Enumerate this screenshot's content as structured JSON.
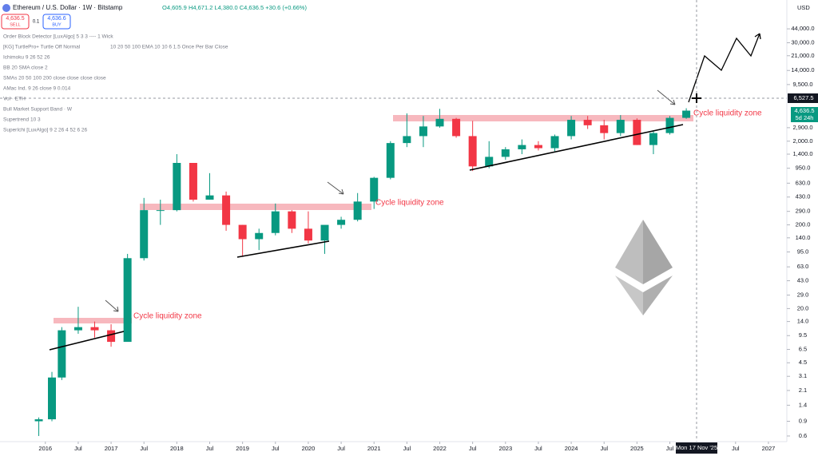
{
  "header": {
    "symbol": "Ethereum / U.S. Dollar · 1W · Bitstamp",
    "ohlc": "O4,605.9 H4,671.2 L4,380.0 C4,636.5 +30.6 (+0.66%)"
  },
  "trade": {
    "sell_price": "4,636.5",
    "sell": "SELL",
    "spread": "0.1",
    "buy_price": "4,636.6",
    "buy": "BUY"
  },
  "indicators": [
    "Order Block Detector [LuxAlgo] 5 3 3 ---- 1 Wick",
    "[KG] TurtlePro+ Turtle Off Normal",
    "Ichimoku 9 26 52 26",
    "BB 20 SMA close 2",
    "SMAs 20 50 100 200 close close close close",
    "AMac Ind. 9 26 close 9 0.014",
    "Vol · ETH",
    "Bull Market Support Band · W",
    "Supertrend 10 3",
    "SuperIchi [LuxAlgo] 9 2 26 4 52 6 26"
  ],
  "indicator_extra": "10 20 50 100 EMA 10 10 6 1.5 Once Per Bar Close",
  "price_scale": {
    "currency": "USD",
    "crosshair_price": "6,527.5",
    "last_price": "4,636.5",
    "countdown": "5d 24h"
  },
  "crosshair_date": "Mon 17 Nov '25",
  "chart_data": {
    "type": "candlestick",
    "log_scale": true,
    "up_color": "#089981",
    "down_color": "#f23645",
    "annotations": [
      "Cycle liquidity zone",
      "Cycle liquidity zone",
      "Cycle liquidity zone"
    ],
    "x": [
      2015.9,
      2016.1,
      2016.25,
      2016.5,
      2016.75,
      2017.0,
      2017.25,
      2017.5,
      2017.75,
      2018.0,
      2018.25,
      2018.5,
      2018.75,
      2019.0,
      2019.25,
      2019.5,
      2019.75,
      2020.0,
      2020.25,
      2020.5,
      2020.75,
      2021.0,
      2021.25,
      2021.5,
      2021.75,
      2022.0,
      2022.25,
      2022.5,
      2022.75,
      2023.0,
      2023.25,
      2023.5,
      2023.75,
      2024.0,
      2024.25,
      2024.5,
      2024.75,
      2025.0,
      2025.25,
      2025.5,
      2025.75
    ],
    "open": [
      0.9,
      0.95,
      3,
      11,
      12,
      11,
      8,
      80,
      300,
      300,
      1100,
      400,
      450,
      200,
      135,
      160,
      290,
      180,
      130,
      200,
      230,
      380,
      730,
      1900,
      2300,
      3000,
      3700,
      2300,
      1000,
      1300,
      1600,
      1800,
      1650,
      2300,
      3600,
      3100,
      2500,
      3600,
      1800,
      2500,
      3800
    ],
    "high": [
      1.0,
      3.5,
      12,
      21,
      14,
      13,
      90,
      420,
      400,
      1400,
      1100,
      830,
      500,
      200,
      180,
      360,
      300,
      290,
      150,
      250,
      480,
      750,
      2000,
      4300,
      4000,
      4870,
      3800,
      3500,
      2000,
      1700,
      2100,
      2000,
      2400,
      4000,
      4000,
      3600,
      4100,
      3750,
      2700,
      4000,
      4950
    ],
    "low": [
      0.6,
      0.9,
      2.8,
      10,
      9,
      7,
      15,
      75,
      200,
      290,
      380,
      400,
      170,
      83,
      100,
      150,
      160,
      120,
      90,
      180,
      220,
      310,
      700,
      1700,
      1700,
      2900,
      2200,
      880,
      950,
      1200,
      1400,
      1550,
      1520,
      2100,
      2800,
      2100,
      2300,
      1800,
      1400,
      2400,
      3700
    ],
    "close": [
      0.95,
      3.0,
      11,
      12,
      11,
      8,
      80,
      300,
      300,
      1100,
      400,
      450,
      200,
      135,
      160,
      290,
      180,
      130,
      200,
      230,
      380,
      730,
      1900,
      2300,
      3000,
      3700,
      2300,
      1000,
      1300,
      1600,
      1800,
      1650,
      2300,
      3600,
      3100,
      2500,
      3600,
      1800,
      2500,
      3800,
      4636.5
    ],
    "xlim": [
      2015.31,
      2027.28
    ],
    "ylim": [
      0.514,
      97300
    ],
    "xticks": [
      2016,
      {
        "value": 2016.5,
        "label": "Jul"
      },
      2017,
      {
        "value": 2017.5,
        "label": "Jul"
      },
      2018,
      {
        "value": 2018.5,
        "label": "Jul"
      },
      2019,
      {
        "value": 2019.5,
        "label": "Jul"
      },
      2020,
      {
        "value": 2020.5,
        "label": "Jul"
      },
      2021,
      {
        "value": 2021.5,
        "label": "Jul"
      },
      2022,
      {
        "value": 2022.5,
        "label": "Jul"
      },
      2023,
      {
        "value": 2023.5,
        "label": "Jul"
      },
      2024,
      {
        "value": 2024.5,
        "label": "Jul"
      },
      2025,
      {
        "value": 2025.5,
        "label": "Jul"
      },
      {
        "value": 2026.5,
        "label": "Jul"
      },
      2027
    ],
    "yticks": [
      0.6,
      0.9,
      1.4,
      2.1,
      3.1,
      4.5,
      6.5,
      9.5,
      {
        "value": 14,
        "label": "14.0"
      },
      {
        "value": 20,
        "label": "20.0"
      },
      {
        "value": 29,
        "label": "29.0"
      },
      {
        "value": 43,
        "label": "43.0"
      },
      {
        "value": 63,
        "label": "63.0"
      },
      {
        "value": 95,
        "label": "95.0"
      },
      {
        "value": 140,
        "label": "140.0"
      },
      {
        "value": 200,
        "label": "200.0"
      },
      {
        "value": 290,
        "label": "290.0"
      },
      {
        "value": 430,
        "label": "430.0"
      },
      {
        "value": 630,
        "label": "630.0"
      },
      {
        "value": 950,
        "label": "950.0"
      },
      {
        "value": 1400,
        "label": "1,400.0"
      },
      {
        "value": 2000,
        "label": "2,000.0"
      },
      {
        "value": 2900,
        "label": "2,900.0"
      },
      {
        "value": 9500,
        "label": "9,500.0"
      },
      {
        "value": 14000,
        "label": "14,000.0"
      },
      {
        "value": 21000,
        "label": "21,000.0"
      },
      {
        "value": 30000,
        "label": "30,000.0"
      },
      {
        "value": 44000,
        "label": "44,000.0"
      }
    ]
  }
}
